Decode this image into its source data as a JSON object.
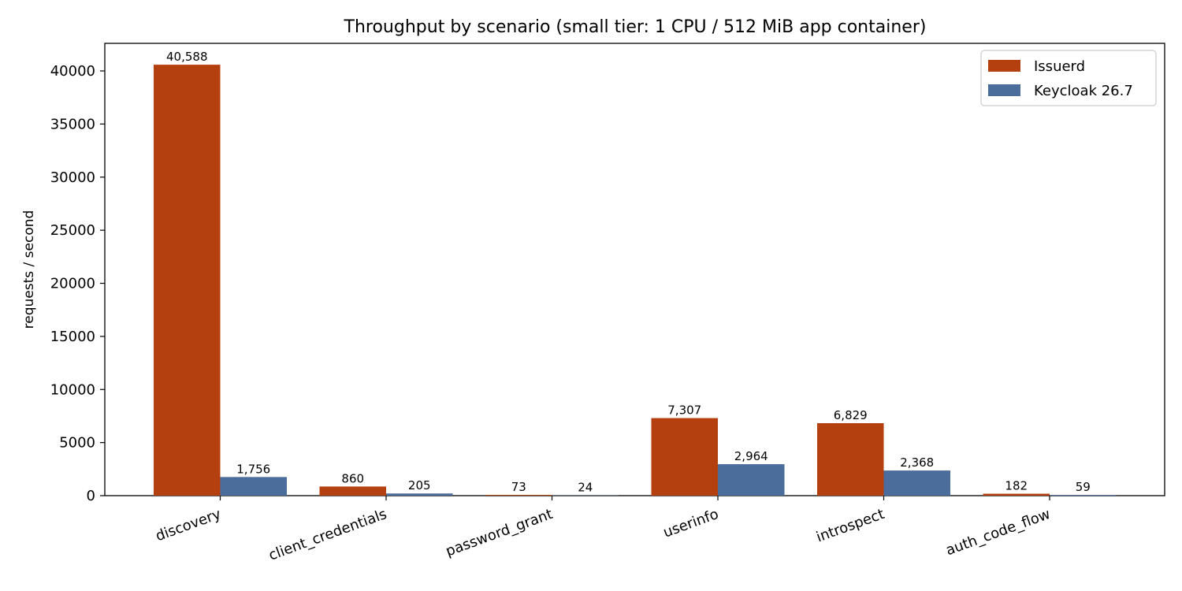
{
  "chart_data": {
    "type": "bar",
    "title": "Throughput by scenario (small tier: 1 CPU / 512 MiB app container)",
    "xlabel": "",
    "ylabel": "requests / second",
    "categories": [
      "discovery",
      "client_credentials",
      "password_grant",
      "userinfo",
      "introspect",
      "auth_code_flow"
    ],
    "series": [
      {
        "name": "Issuerd",
        "color": "#b5400f",
        "values": [
          40588,
          860,
          73,
          7307,
          6829,
          182
        ],
        "labels": [
          "40,588",
          "860",
          "73",
          "7,307",
          "6,829",
          "182"
        ]
      },
      {
        "name": "Keycloak 26.7",
        "color": "#4a6d9c",
        "values": [
          1756,
          205,
          24,
          2964,
          2368,
          59
        ],
        "labels": [
          "1,756",
          "205",
          "24",
          "2,964",
          "2,368",
          "59"
        ]
      }
    ],
    "ylim": [
      0,
      42600
    ],
    "yticks": [
      0,
      5000,
      10000,
      15000,
      20000,
      25000,
      30000,
      35000,
      40000
    ],
    "grid": false,
    "legend_position": "top-right"
  }
}
